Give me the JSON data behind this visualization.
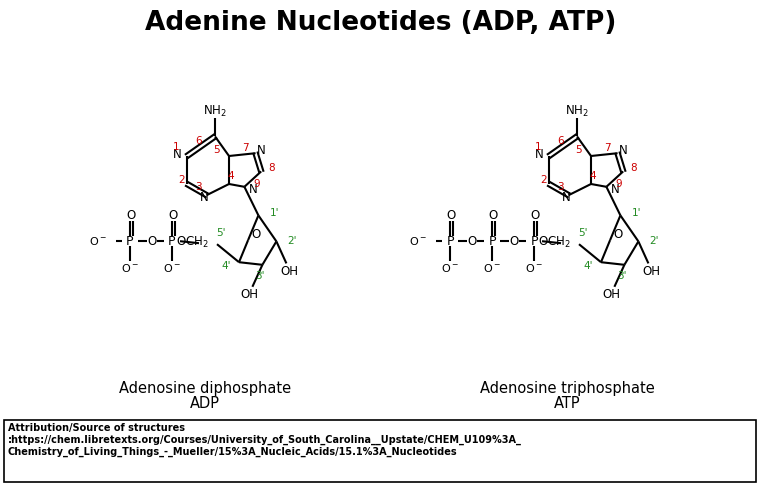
{
  "title": "Adenine Nucleotides (ADP, ATP)",
  "title_fontsize": 19,
  "title_fontweight": "bold",
  "background_color": "#ffffff",
  "black": "#000000",
  "red": "#cc0000",
  "green": "#228B22",
  "adp_label": "Adenosine diphosphate",
  "adp_abbr": "ADP",
  "atp_label": "Adenosine triphosphate",
  "atp_abbr": "ATP",
  "attribution_line1": "Attribution/Source of structures",
  "attribution_line2": ":https://chem.libretexts.org/Courses/University_of_South_Carolina__Upstate/CHEM_U109%3A_",
  "attribution_line3": "Chemistry_of_Living_Things_-_Mueller/15%3A_Nucleic_Acids/15.1%3A_Nucleotides"
}
